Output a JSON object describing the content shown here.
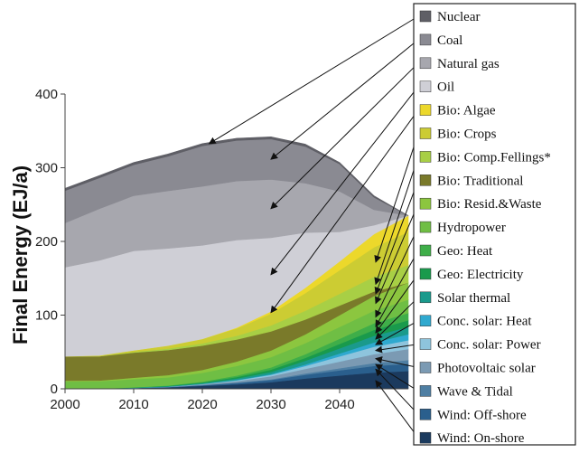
{
  "chart_data": {
    "type": "area",
    "stacked": true,
    "title": "",
    "xlabel": "",
    "ylabel": "Final Energy (EJ/a)",
    "x": [
      2000,
      2005,
      2010,
      2015,
      2020,
      2025,
      2030,
      2035,
      2040,
      2045,
      2050
    ],
    "xticks": [
      2000,
      2010,
      2020,
      2030,
      2040
    ],
    "yticks": [
      0,
      100,
      200,
      300,
      400
    ],
    "xlim": [
      2000,
      2050
    ],
    "ylim": [
      0,
      400
    ],
    "grid": false,
    "legend_position": "right",
    "series": [
      {
        "name": "Wind: On-shore",
        "color": "#1b3a5e",
        "values": [
          0,
          0.3,
          1,
          2,
          4,
          6,
          9,
          14,
          18,
          22,
          24
        ]
      },
      {
        "name": "Wind: Off-shore",
        "color": "#2a5f8d",
        "values": [
          0,
          0,
          0.2,
          0.5,
          1,
          2,
          3,
          5,
          7,
          9,
          10
        ]
      },
      {
        "name": "Wave & Tidal",
        "color": "#4f7fa3",
        "values": [
          0,
          0,
          0,
          0,
          0.2,
          0.5,
          1,
          2,
          3,
          4,
          5
        ]
      },
      {
        "name": "Photovoltaic solar",
        "color": "#7b9ab3",
        "values": [
          0,
          0,
          0.2,
          0.5,
          1,
          2,
          4,
          6,
          9,
          12,
          15
        ]
      },
      {
        "name": "Conc. solar: Power",
        "color": "#8ec4dd",
        "values": [
          0,
          0,
          0,
          0,
          0.3,
          1,
          2,
          4,
          7,
          10,
          12
        ]
      },
      {
        "name": "Conc. solar: Heat",
        "color": "#2fa9cf",
        "values": [
          0,
          0,
          0,
          0,
          0.2,
          0.5,
          1,
          2,
          4,
          6,
          8
        ]
      },
      {
        "name": "Solar thermal",
        "color": "#1a9a8c",
        "values": [
          0,
          0,
          0.2,
          0.5,
          1,
          2,
          3,
          5,
          7,
          9,
          10
        ]
      },
      {
        "name": "Geo: Electricity",
        "color": "#199a4c",
        "values": [
          0,
          0,
          0.2,
          0.5,
          1,
          2,
          3,
          4,
          6,
          8,
          9
        ]
      },
      {
        "name": "Geo: Heat",
        "color": "#3fae49",
        "values": [
          0,
          0,
          0.3,
          0.6,
          1,
          2,
          3,
          5,
          7,
          9,
          10
        ]
      },
      {
        "name": "Hydropower",
        "color": "#6fbe44",
        "values": [
          10,
          10,
          11,
          11,
          12,
          13,
          14,
          15,
          16,
          17,
          18
        ]
      },
      {
        "name": "Bio: Resid.&Waste",
        "color": "#8cc63f",
        "values": [
          1,
          1,
          2,
          3,
          4,
          6,
          9,
          12,
          16,
          20,
          23
        ]
      },
      {
        "name": "Bio: Traditional",
        "color": "#7a7a2a",
        "values": [
          33,
          33,
          34,
          34,
          33,
          30,
          26,
          20,
          13,
          6,
          0
        ]
      },
      {
        "name": "Bio: Comp.Fellings*",
        "color": "#a8cf45",
        "values": [
          0,
          0,
          1,
          2,
          3,
          5,
          8,
          12,
          16,
          20,
          24
        ]
      },
      {
        "name": "Bio: Crops",
        "color": "#cccc33",
        "values": [
          0,
          1,
          2,
          4,
          6,
          10,
          16,
          24,
          32,
          40,
          45
        ]
      },
      {
        "name": "Bio: Algae",
        "color": "#ecd82b",
        "values": [
          0,
          0,
          0,
          0,
          0,
          1,
          3,
          7,
          12,
          18,
          22
        ]
      },
      {
        "name": "Oil",
        "color": "#cfcfd6",
        "values": [
          121,
          129,
          135,
          132,
          127,
          119,
          100,
          75,
          40,
          12,
          0
        ]
      },
      {
        "name": "Natural gas",
        "color": "#a7a7ae",
        "values": [
          60,
          70,
          75,
          78,
          80,
          80,
          79,
          67,
          55,
          21,
          0
        ]
      },
      {
        "name": "Coal",
        "color": "#8a8a92",
        "values": [
          44,
          42,
          42,
          47,
          55,
          55,
          55,
          50,
          37,
          17,
          0
        ]
      },
      {
        "name": "Nuclear",
        "color": "#5f5f66",
        "values": [
          3,
          3,
          3,
          3,
          3,
          3,
          3,
          3,
          2,
          2,
          0
        ]
      }
    ]
  }
}
